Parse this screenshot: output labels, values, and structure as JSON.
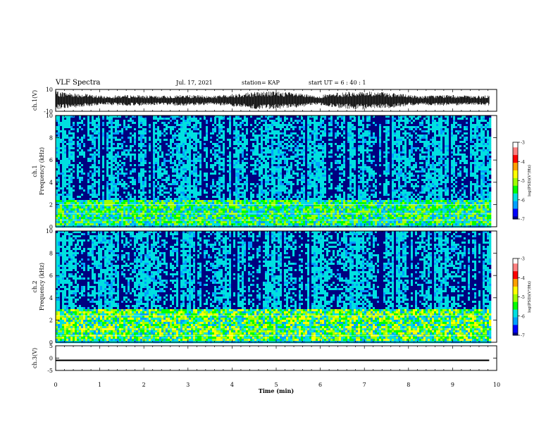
{
  "header": {
    "title": "VLF Spectra",
    "date": "Jul. 17, 2021",
    "station": "station= KAP",
    "start": "start UT = 6 : 40 : 1"
  },
  "chart_data": [
    {
      "type": "line",
      "panel": "ch1-waveform",
      "ylabel": "ch.1(V)",
      "ylim": [
        -10,
        10
      ],
      "yticks": [
        "10",
        "-10"
      ],
      "x_range_min": [
        0,
        9.83
      ],
      "amplitude_range": [
        -9,
        9
      ]
    },
    {
      "type": "heatmap",
      "panel": "ch1-spectrogram",
      "ylabel": "ch.1 Frequency (kHz)",
      "ylim": [
        0,
        10
      ],
      "yticks": [
        "0",
        "2",
        "4",
        "6",
        "8",
        "10"
      ],
      "colorbar": {
        "label": "log(PSD)(V²/Hz)",
        "range": [
          -7,
          -3
        ],
        "ticks": [
          "-3",
          "-4",
          "-5",
          "-6",
          "-7"
        ]
      },
      "dominant_level": -4,
      "enhanced_band_khz": [
        0.3,
        2.5
      ],
      "x_range_min": [
        0,
        9.83
      ]
    },
    {
      "type": "heatmap",
      "panel": "ch2-spectrogram",
      "ylabel": "ch.2 Frequency (kHz)",
      "ylim": [
        0,
        10
      ],
      "yticks": [
        "0",
        "2",
        "4",
        "6",
        "8",
        "10"
      ],
      "colorbar": {
        "label": "log(PSD)(V²/Hz)",
        "range": [
          -7,
          -3
        ],
        "ticks": [
          "-3",
          "-4",
          "-5",
          "-6",
          "-7"
        ]
      },
      "dominant_level": -4,
      "enhanced_band_khz": [
        0.3,
        3.0
      ],
      "x_range_min": [
        0,
        9.83
      ]
    },
    {
      "type": "line",
      "panel": "ch3-waveform",
      "ylabel": "ch.3(V)",
      "ylim": [
        -5,
        5
      ],
      "yticks": [
        "5",
        "0",
        "-5"
      ],
      "amplitude_range": [
        -1.2,
        -0.6
      ],
      "x_range_min": [
        0,
        9.83
      ]
    }
  ],
  "x_axis": {
    "xlabel": "Time (min)",
    "xlim": [
      0,
      10
    ],
    "ticks": [
      "0",
      "1",
      "2",
      "3",
      "4",
      "5",
      "6",
      "7",
      "8",
      "9",
      "10"
    ]
  },
  "colors": {
    "colormap": [
      "#000080",
      "#0000ff",
      "#00a0ff",
      "#00e0e0",
      "#00ff00",
      "#a0ff00",
      "#ffff00",
      "#ffa000",
      "#ff0000",
      "#ff8080",
      "#ffffff"
    ]
  }
}
